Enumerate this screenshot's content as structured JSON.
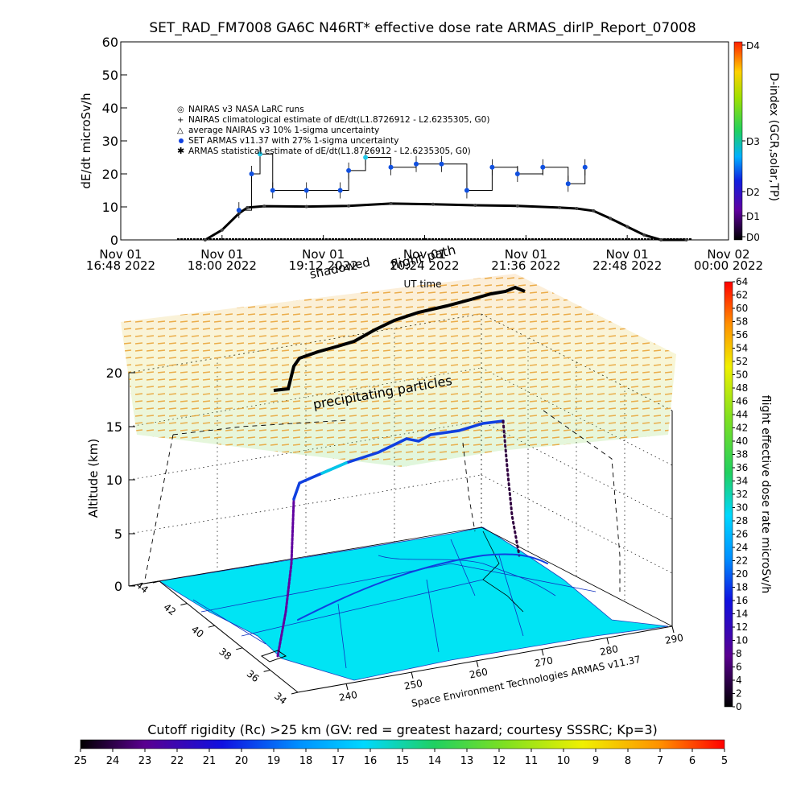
{
  "top_chart": {
    "title": "SET_RAD_FM7008  GA6C N46RT* effective dose rate ARMAS_dirIP_Report_07008",
    "ylabel": "dE/dt microSv/h",
    "y_ticks": [
      "0",
      "10",
      "20",
      "30",
      "40",
      "50",
      "60"
    ],
    "x_ticks": [
      {
        "day": "Nov 01",
        "time": "16:48 2022"
      },
      {
        "day": "Nov 01",
        "time": "18:00 2022"
      },
      {
        "day": "Nov 01",
        "time": "19:12 2022"
      },
      {
        "day": "Nov 01",
        "time": "20:24 2022"
      },
      {
        "day": "Nov 01",
        "time": "21:36 2022"
      },
      {
        "day": "Nov 01",
        "time": "22:48 2022"
      },
      {
        "day": "Nov 02",
        "time": "00:00 2022"
      }
    ],
    "xlabel": "UT time",
    "legend": [
      "NAIRAS v3 NASA LaRC runs",
      "NAIRAS climatological estimate of dE/dt(L1.8726912 - L2.6235305, G0)",
      "average NAIRAS v3 10% 1-sigma uncertainty",
      "SET ARMAS v11.37 with 27% 1-sigma uncertainty",
      "ARMAS statistical estimate of dE/dt(L1.8726912 - L2.6235305, G0)"
    ],
    "dindex_label": "D-index (GCR,solar,TP)",
    "dindex_ticks": [
      "D4",
      "D3",
      "D2",
      "D1",
      "D0"
    ]
  },
  "overlay": {
    "shadowed": "shadowed",
    "flight_path": "flight path",
    "precipitating": "precipitating particles",
    "credit": "Space Environment Technologies ARMAS v11.37"
  },
  "plot3d": {
    "zlabel": "Altitude (km)",
    "z_ticks": [
      "0",
      "5",
      "10",
      "15",
      "20"
    ],
    "lat_ticks": [
      "44",
      "42",
      "40",
      "38",
      "36",
      "34"
    ],
    "lon_ticks": [
      "240",
      "250",
      "260",
      "270",
      "280",
      "290"
    ]
  },
  "right_bar": {
    "label": "flight effective dose rate microSv/h",
    "ticks": [
      "0",
      "2",
      "4",
      "6",
      "8",
      "10",
      "12",
      "14",
      "16",
      "18",
      "20",
      "22",
      "24",
      "26",
      "28",
      "30",
      "32",
      "34",
      "36",
      "38",
      "40",
      "42",
      "44",
      "46",
      "48",
      "50",
      "52",
      "54",
      "56",
      "58",
      "60",
      "62",
      "64"
    ]
  },
  "bottom_bar": {
    "label": "Cutoff rigidity (Rc) >25 km (GV: red = greatest hazard; courtesy SSSRC; Kp=3)",
    "ticks": [
      "25",
      "24",
      "23",
      "22",
      "21",
      "20",
      "19",
      "18",
      "17",
      "16",
      "15",
      "14",
      "13",
      "12",
      "11",
      "10",
      "9",
      "8",
      "7",
      "6",
      "5"
    ]
  },
  "chart_data": {
    "type": "line",
    "title": "SET_RAD_FM7008  GA6C N46RT* effective dose rate ARMAS_dirIP_Report_07008",
    "xlabel": "UT time",
    "ylabel": "dE/dt microSv/h",
    "x_units": "UT time, Nov 01 2022 (hours)",
    "xlim": [
      16.8,
      24.0
    ],
    "ylim": [
      0,
      60
    ],
    "series": [
      {
        "name": "NAIRAS climatological estimate of dE/dt(L1.8726912 - L2.6235305, G0)",
        "x": [
          17.8,
          18.0,
          18.2,
          18.3,
          18.5,
          19.0,
          19.5,
          20.0,
          20.5,
          21.0,
          21.5,
          22.0,
          22.2,
          22.4,
          22.6,
          22.8,
          23.0,
          23.2,
          23.5
        ],
        "y": [
          0,
          3,
          8,
          9.8,
          10.2,
          10.1,
          10.3,
          11.0,
          10.8,
          10.5,
          10.3,
          9.8,
          9.5,
          8.8,
          6.5,
          4.0,
          1.5,
          0,
          0
        ]
      },
      {
        "name": "SET ARMAS v11.37 with 27% 1-sigma uncertainty",
        "x": [
          18.2,
          18.35,
          18.45,
          18.6,
          19.0,
          19.4,
          19.5,
          19.7,
          20.0,
          20.3,
          20.6,
          20.9,
          21.2,
          21.5,
          21.8,
          22.1,
          22.3
        ],
        "y": [
          9,
          20,
          26,
          15,
          15,
          15,
          21,
          25,
          22,
          23,
          23,
          15,
          22,
          20,
          22,
          17,
          22
        ]
      }
    ],
    "dindex_scale": [
      "D0",
      "D1",
      "D2",
      "D3",
      "D4"
    ],
    "dose_rate_scale": [
      0,
      64
    ],
    "cutoff_rigidity_scale_GV": [
      25,
      5
    ]
  }
}
